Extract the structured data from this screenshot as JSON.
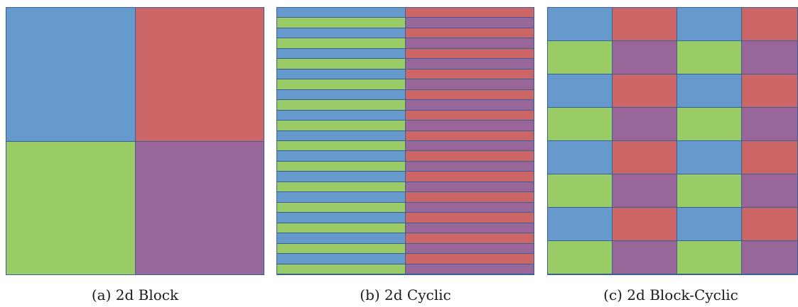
{
  "colors": {
    "blue": "#6699cc",
    "red": "#cc6666",
    "green": "#99cc66",
    "purple": "#996699",
    "grid_line": "#3b5f8e"
  },
  "panels": [
    {
      "id": "a",
      "caption": "(a) 2d Block",
      "layout": "block",
      "block_grid": [
        2,
        2
      ],
      "process_grid": [
        2,
        2
      ]
    },
    {
      "id": "b",
      "caption": "(b) 2d Cyclic",
      "layout": "cyclic",
      "cyclic_rows": 26,
      "cyclic_cols": 2,
      "process_grid": [
        2,
        2
      ]
    },
    {
      "id": "c",
      "caption": "(c) 2d Block-Cyclic",
      "layout": "block-cyclic",
      "block_grid": [
        8,
        4
      ],
      "process_grid": [
        2,
        2
      ]
    }
  ],
  "process_colors": [
    [
      "blue",
      "red"
    ],
    [
      "green",
      "purple"
    ]
  ]
}
